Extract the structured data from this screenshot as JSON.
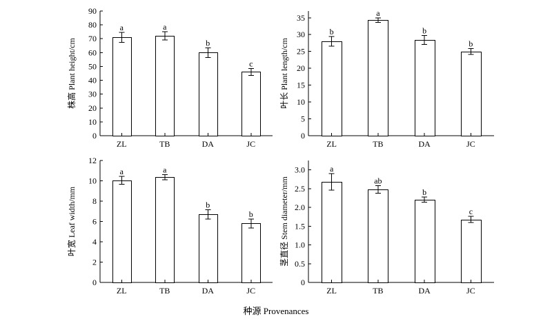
{
  "figure": {
    "common_xlabel": "种源 Provenances"
  },
  "chart_data": [
    {
      "type": "bar",
      "categories": [
        "ZL",
        "TB",
        "DA",
        "JC"
      ],
      "values": [
        71,
        72,
        60,
        46
      ],
      "errors": [
        3.5,
        3,
        3.5,
        2.5
      ],
      "significance": [
        "a",
        "a",
        "b",
        "c"
      ],
      "ylabel": "株高 Plant height/cm",
      "ylim": [
        0,
        90
      ],
      "yticks": [
        0,
        10,
        20,
        30,
        40,
        50,
        60,
        70,
        80,
        90
      ],
      "yticklabels": [
        "0",
        "10",
        "20",
        "30",
        "40",
        "50",
        "60",
        "70",
        "80",
        "90"
      ]
    },
    {
      "type": "bar",
      "categories": [
        "ZL",
        "TB",
        "DA",
        "JC"
      ],
      "values": [
        28,
        34.3,
        28.4,
        25
      ],
      "errors": [
        1.4,
        0.7,
        1.3,
        0.9
      ],
      "significance": [
        "b",
        "a",
        "b",
        "b"
      ],
      "ylabel": "叶长 Plant length/cm",
      "ylim": [
        0,
        37
      ],
      "yticks": [
        0,
        5,
        10,
        15,
        20,
        25,
        30,
        35
      ],
      "yticklabels": [
        "0",
        "5",
        "10",
        "15",
        "20",
        "25",
        "30",
        "35"
      ]
    },
    {
      "type": "bar",
      "categories": [
        "ZL",
        "TB",
        "DA",
        "JC"
      ],
      "values": [
        10.05,
        10.35,
        6.7,
        5.8
      ],
      "errors": [
        0.4,
        0.25,
        0.45,
        0.45
      ],
      "significance": [
        "a",
        "a",
        "b",
        "b"
      ],
      "ylabel": "叶宽 Leaf width/mm",
      "ylim": [
        0,
        12
      ],
      "yticks": [
        0,
        2,
        4,
        6,
        8,
        10,
        12
      ],
      "yticklabels": [
        "0",
        "2",
        "4",
        "6",
        "8",
        "10",
        "12"
      ]
    },
    {
      "type": "bar",
      "categories": [
        "ZL",
        "TB",
        "DA",
        "JC"
      ],
      "values": [
        2.68,
        2.48,
        2.21,
        1.68
      ],
      "errors": [
        0.22,
        0.1,
        0.07,
        0.08
      ],
      "significance": [
        "a",
        "ab",
        "b",
        "c"
      ],
      "ylabel": "茎直径 Stem diameter/mm",
      "ylim": [
        0,
        3.25
      ],
      "yticks": [
        0,
        0.5,
        1.0,
        1.5,
        2.0,
        2.5,
        3.0
      ],
      "yticklabels": [
        "0",
        "0.5",
        "1.0",
        "1.5",
        "2.0",
        "2.5",
        "3.0"
      ]
    }
  ]
}
